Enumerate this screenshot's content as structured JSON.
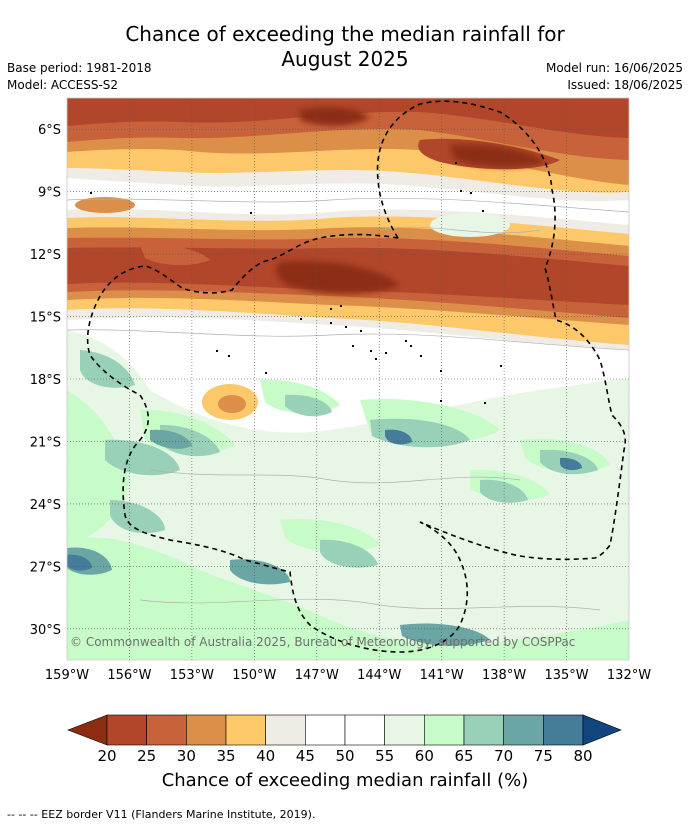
{
  "title_line1": "Chance of exceeding the median rainfall for",
  "title_line2": "August 2025",
  "base_period": "Base period: 1981-2018",
  "model": "Model: ACCESS-S2",
  "model_run": "Model run: 16/06/2025",
  "issued": "Issued: 18/06/2025",
  "copyright": "© Commonwealth of Australia 2025, Bureau of Meteorology, supported by COSPPac",
  "footnote": "-- -- -- EEZ border V11 (Flanders Marine Institute, 2019).",
  "map": {
    "lat_labels": [
      "6°S",
      "9°S",
      "12°S",
      "15°S",
      "18°S",
      "21°S",
      "24°S",
      "27°S",
      "30°S"
    ],
    "lon_labels": [
      "159°W",
      "156°W",
      "153°W",
      "150°W",
      "147°W",
      "144°W",
      "141°W",
      "138°W",
      "135°W",
      "132°W"
    ],
    "lat_range": [
      -31.5,
      -4.5
    ],
    "lon_range": [
      -159,
      -132
    ]
  },
  "colorbar": {
    "title": "Chance of exceeding median rainfall (%)",
    "ticks": [
      "20",
      "25",
      "30",
      "35",
      "40",
      "45",
      "50",
      "55",
      "60",
      "65",
      "70",
      "75",
      "80"
    ],
    "colors": {
      "below20": "#8c2d12",
      "20-25": "#b1462a",
      "25-30": "#c8623a",
      "30-35": "#dc8f48",
      "35-40": "#fdc86a",
      "40-45": "#efece6",
      "45-50": "#ffffff",
      "50-55": "#ffffff",
      "55-60": "#e8f6e5",
      "60-65": "#c7fcc9",
      "65-70": "#99d0b8",
      "70-75": "#6aa7a4",
      "75-80": "#447c99",
      "above80": "#12457e"
    }
  }
}
